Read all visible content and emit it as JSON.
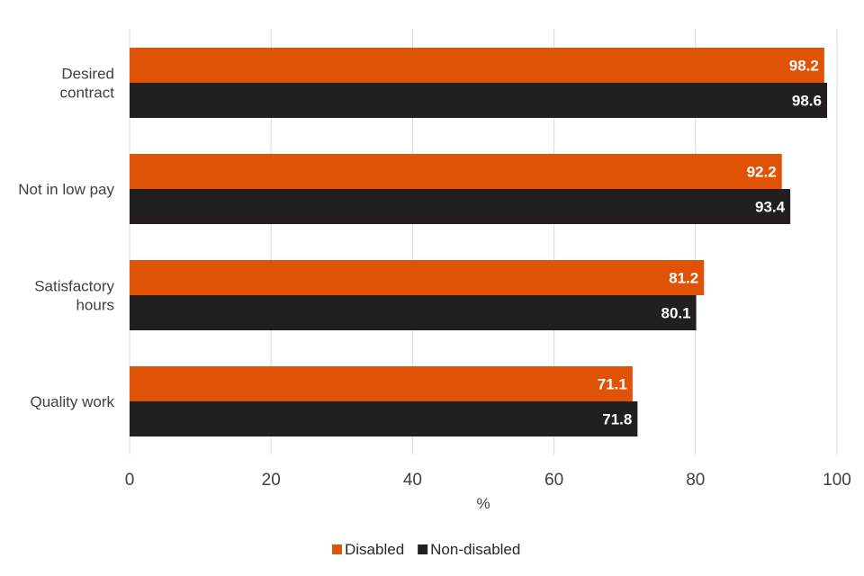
{
  "chart_data": {
    "type": "bar",
    "orientation": "horizontal",
    "categories": [
      "Desired contract",
      "Not in low pay",
      "Satisfactory hours",
      "Quality work"
    ],
    "series": [
      {
        "name": "Disabled",
        "color": "#e05206",
        "values": [
          98.2,
          92.2,
          81.2,
          71.1
        ]
      },
      {
        "name": "Non-disabled",
        "color": "#231f20",
        "values": [
          98.6,
          93.4,
          80.1,
          71.8
        ]
      }
    ],
    "xlabel": "%",
    "ylabel": "",
    "xlim": [
      0,
      100
    ],
    "xticks": [
      "0",
      "20",
      "40",
      "60",
      "80",
      "100"
    ],
    "grid": true,
    "legend_position": "bottom",
    "data_labels": true
  }
}
